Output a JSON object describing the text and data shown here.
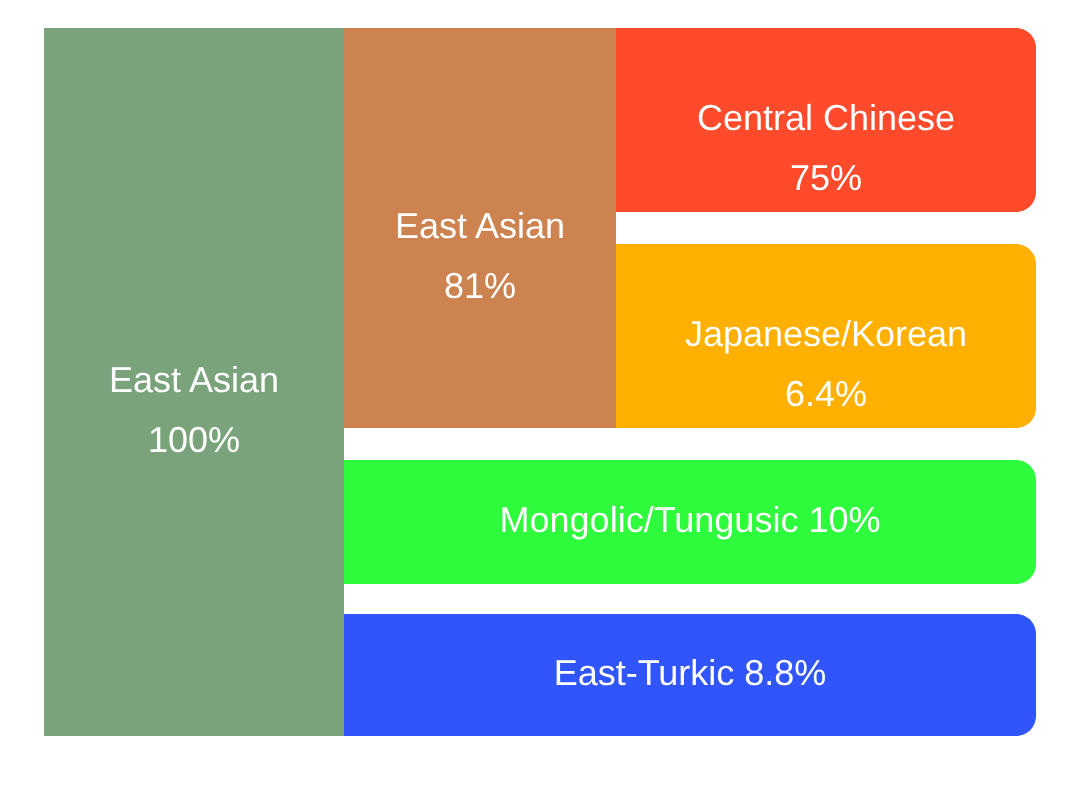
{
  "chart_data": {
    "type": "other",
    "categories": [
      "East Asian",
      "East Asian",
      "Central Chinese",
      "Japanese/Korean",
      "Mongolic/Tungusic",
      "East-Turkic"
    ],
    "values": [
      100,
      81,
      75,
      6.4,
      10,
      8.8
    ],
    "value_labels": [
      "100%",
      "81%",
      "75%",
      "6.4%",
      "10%",
      "8.8%"
    ],
    "colors": [
      "#7aa37c",
      "#cc834f",
      "#ff4b2b",
      "#ffb000",
      "#2dfb3c",
      "#2f55fb"
    ]
  }
}
